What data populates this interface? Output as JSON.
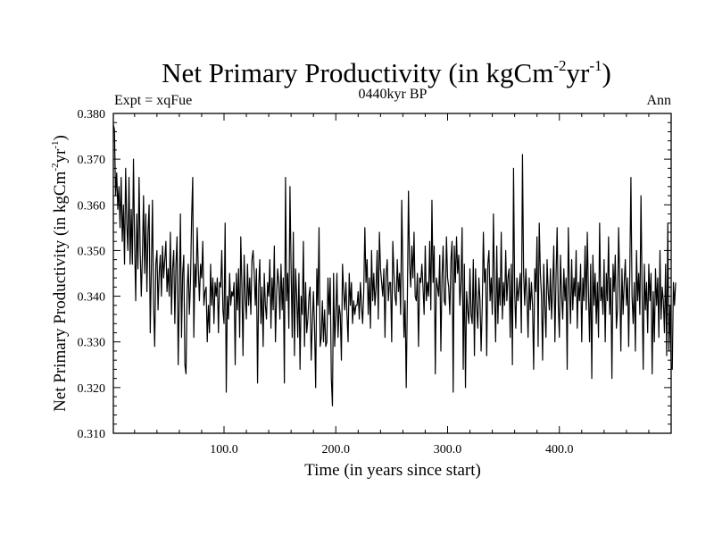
{
  "chart_data": {
    "type": "line",
    "title": {
      "main": "Net Primary Productivity (in kgCm",
      "sup1": "-2",
      "mid": "yr",
      "sup2": "-1",
      "end": ")"
    },
    "subtitle_left": "Expt = xqFue",
    "subtitle_center": "0440kyr BP",
    "subtitle_right": "Ann",
    "xlabel": "Time (in years since start)",
    "ylabel": {
      "main": "Net Primary Productivity (in kgCm",
      "sup1": "-2",
      "mid": "yr",
      "sup2": "-1",
      "end": ")"
    },
    "xlim": [
      1,
      500
    ],
    "ylim": [
      0.31,
      0.38
    ],
    "xticks": [
      100,
      200,
      300,
      400
    ],
    "xtick_labels": [
      "100.0",
      "200.0",
      "300.0",
      "400.0"
    ],
    "yticks": [
      0.31,
      0.32,
      0.33,
      0.34,
      0.35,
      0.36,
      0.37,
      0.38
    ],
    "ytick_labels": [
      "0.310",
      "0.320",
      "0.330",
      "0.340",
      "0.350",
      "0.360",
      "0.370",
      "0.380"
    ],
    "series": [
      {
        "name": "Net Primary Productivity",
        "color": "#000000",
        "x_start": 1,
        "x_step": 1,
        "values": [
          0.3775,
          0.3765,
          0.362,
          0.367,
          0.359,
          0.364,
          0.355,
          0.366,
          0.352,
          0.36,
          0.347,
          0.368,
          0.356,
          0.35,
          0.366,
          0.347,
          0.359,
          0.347,
          0.37,
          0.352,
          0.339,
          0.358,
          0.346,
          0.366,
          0.35,
          0.34,
          0.349,
          0.362,
          0.345,
          0.358,
          0.341,
          0.354,
          0.36,
          0.332,
          0.346,
          0.361,
          0.338,
          0.329,
          0.347,
          0.35,
          0.337,
          0.345,
          0.349,
          0.34,
          0.351,
          0.344,
          0.348,
          0.352,
          0.341,
          0.346,
          0.34,
          0.354,
          0.336,
          0.346,
          0.35,
          0.334,
          0.347,
          0.353,
          0.325,
          0.34,
          0.358,
          0.331,
          0.345,
          0.349,
          0.325,
          0.323,
          0.341,
          0.347,
          0.336,
          0.343,
          0.357,
          0.366,
          0.331,
          0.347,
          0.342,
          0.355,
          0.346,
          0.339,
          0.347,
          0.344,
          0.352,
          0.338,
          0.341,
          0.342,
          0.33,
          0.338,
          0.332,
          0.347,
          0.338,
          0.344,
          0.334,
          0.343,
          0.34,
          0.344,
          0.332,
          0.343,
          0.342,
          0.35,
          0.337,
          0.334,
          0.356,
          0.319,
          0.34,
          0.335,
          0.345,
          0.338,
          0.341,
          0.34,
          0.343,
          0.325,
          0.345,
          0.337,
          0.346,
          0.331,
          0.353,
          0.342,
          0.327,
          0.349,
          0.34,
          0.335,
          0.347,
          0.338,
          0.344,
          0.336,
          0.348,
          0.35,
          0.345,
          0.338,
          0.346,
          0.321,
          0.342,
          0.348,
          0.334,
          0.342,
          0.329,
          0.345,
          0.338,
          0.335,
          0.343,
          0.34,
          0.348,
          0.333,
          0.344,
          0.337,
          0.351,
          0.33,
          0.34,
          0.346,
          0.343,
          0.335,
          0.347,
          0.337,
          0.344,
          0.321,
          0.366,
          0.339,
          0.345,
          0.333,
          0.364,
          0.346,
          0.331,
          0.354,
          0.327,
          0.346,
          0.34,
          0.331,
          0.345,
          0.324,
          0.34,
          0.336,
          0.352,
          0.329,
          0.343,
          0.332,
          0.335,
          0.34,
          0.342,
          0.326,
          0.334,
          0.341,
          0.333,
          0.32,
          0.346,
          0.338,
          0.355,
          0.329,
          0.331,
          0.339,
          0.33,
          0.337,
          0.329,
          0.33,
          0.344,
          0.336,
          0.344,
          0.322,
          0.316,
          0.345,
          0.329,
          0.336,
          0.345,
          0.331,
          0.338,
          0.336,
          0.326,
          0.347,
          0.341,
          0.337,
          0.343,
          0.336,
          0.33,
          0.345,
          0.338,
          0.343,
          0.334,
          0.339,
          0.336,
          0.338,
          0.338,
          0.341,
          0.335,
          0.343,
          0.338,
          0.334,
          0.341,
          0.355,
          0.343,
          0.348,
          0.336,
          0.344,
          0.333,
          0.35,
          0.339,
          0.345,
          0.338,
          0.342,
          0.35,
          0.335,
          0.354,
          0.346,
          0.343,
          0.34,
          0.346,
          0.331,
          0.345,
          0.348,
          0.339,
          0.343,
          0.343,
          0.33,
          0.352,
          0.345,
          0.34,
          0.338,
          0.348,
          0.341,
          0.345,
          0.336,
          0.361,
          0.345,
          0.331,
          0.339,
          0.32,
          0.339,
          0.363,
          0.347,
          0.342,
          0.351,
          0.344,
          0.354,
          0.34,
          0.339,
          0.345,
          0.329,
          0.344,
          0.343,
          0.347,
          0.342,
          0.336,
          0.351,
          0.339,
          0.343,
          0.34,
          0.352,
          0.337,
          0.361,
          0.343,
          0.351,
          0.323,
          0.344,
          0.342,
          0.34,
          0.349,
          0.328,
          0.344,
          0.351,
          0.339,
          0.338,
          0.353,
          0.344,
          0.342,
          0.336,
          0.348,
          0.352,
          0.319,
          0.351,
          0.343,
          0.353,
          0.345,
          0.349,
          0.338,
          0.343,
          0.355,
          0.324,
          0.347,
          0.32,
          0.341,
          0.337,
          0.334,
          0.346,
          0.336,
          0.334,
          0.348,
          0.327,
          0.346,
          0.338,
          0.333,
          0.344,
          0.339,
          0.328,
          0.338,
          0.354,
          0.343,
          0.346,
          0.327,
          0.347,
          0.35,
          0.339,
          0.344,
          0.336,
          0.358,
          0.341,
          0.33,
          0.351,
          0.334,
          0.344,
          0.338,
          0.354,
          0.335,
          0.343,
          0.338,
          0.35,
          0.339,
          0.344,
          0.346,
          0.331,
          0.347,
          0.325,
          0.368,
          0.341,
          0.333,
          0.344,
          0.339,
          0.342,
          0.345,
          0.332,
          0.371,
          0.345,
          0.338,
          0.346,
          0.34,
          0.331,
          0.344,
          0.337,
          0.343,
          0.338,
          0.324,
          0.346,
          0.341,
          0.353,
          0.329,
          0.356,
          0.345,
          0.34,
          0.326,
          0.347,
          0.338,
          0.331,
          0.348,
          0.341,
          0.337,
          0.346,
          0.335,
          0.342,
          0.351,
          0.33,
          0.344,
          0.355,
          0.338,
          0.331,
          0.349,
          0.34,
          0.335,
          0.346,
          0.339,
          0.344,
          0.324,
          0.355,
          0.342,
          0.334,
          0.348,
          0.337,
          0.344,
          0.34,
          0.35,
          0.333,
          0.343,
          0.339,
          0.347,
          0.33,
          0.344,
          0.339,
          0.351,
          0.337,
          0.354,
          0.341,
          0.33,
          0.347,
          0.322,
          0.349,
          0.338,
          0.345,
          0.334,
          0.343,
          0.331,
          0.356,
          0.339,
          0.342,
          0.336,
          0.348,
          0.33,
          0.345,
          0.339,
          0.353,
          0.336,
          0.344,
          0.322,
          0.347,
          0.341,
          0.349,
          0.333,
          0.337,
          0.355,
          0.343,
          0.328,
          0.346,
          0.336,
          0.343,
          0.348,
          0.338,
          0.344,
          0.329,
          0.345,
          0.366,
          0.34,
          0.334,
          0.343,
          0.328,
          0.35,
          0.339,
          0.345,
          0.336,
          0.362,
          0.341,
          0.324,
          0.347,
          0.337,
          0.343,
          0.332,
          0.347,
          0.339,
          0.345,
          0.323,
          0.341,
          0.33,
          0.346,
          0.338,
          0.344,
          0.331,
          0.35,
          0.335,
          0.342,
          0.339,
          0.332,
          0.347,
          0.327,
          0.356,
          0.328,
          0.338,
          0.325,
          0.324,
          0.343,
          0.338,
          0.343
        ]
      }
    ]
  }
}
